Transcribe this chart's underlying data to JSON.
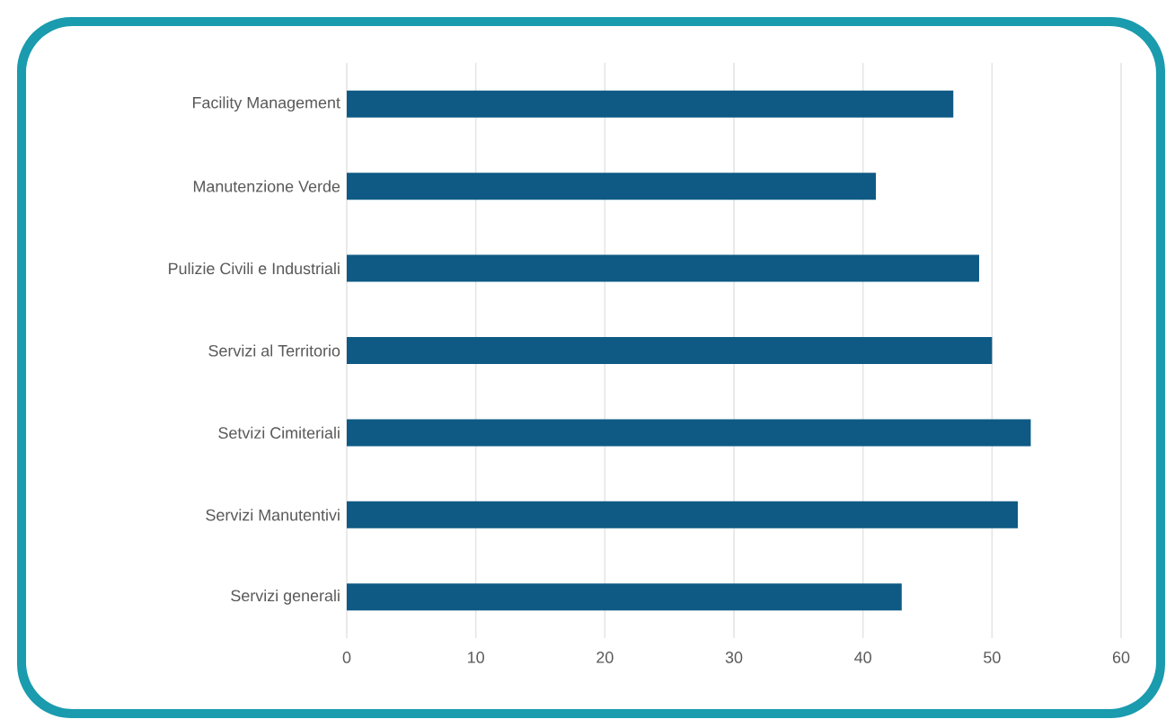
{
  "chart_data": {
    "type": "bar",
    "orientation": "horizontal",
    "categories": [
      "Facility Management",
      "Manutenzione Verde",
      "Pulizie Civili e Industriali",
      "Servizi al Territorio",
      "Setvizi Cimiteriali",
      "Servizi Manutentivi",
      "Servizi generali"
    ],
    "values": [
      47,
      41,
      49,
      50,
      53,
      52,
      43
    ],
    "color": "#0e5a85",
    "xlim": [
      0,
      60
    ],
    "xticks": [
      0,
      10,
      20,
      30,
      40,
      50,
      60
    ],
    "grid": "x"
  }
}
